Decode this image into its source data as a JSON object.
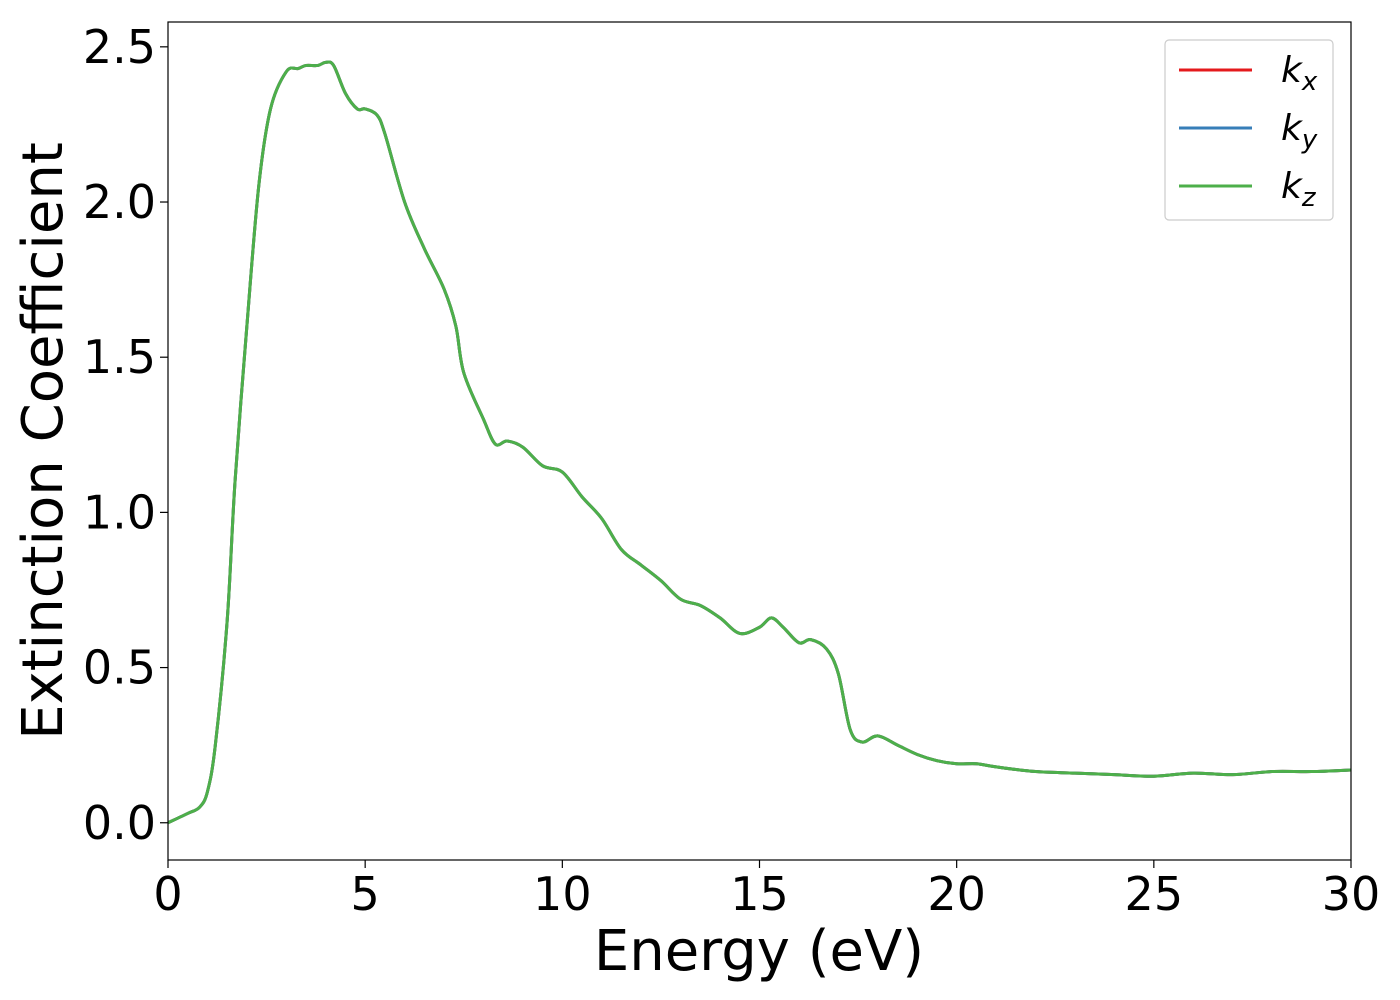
{
  "chart_data": {
    "type": "line",
    "xlabel": "Energy (eV)",
    "ylabel": "Extinction Coefficient",
    "xlim": [
      0,
      30
    ],
    "ylim": [
      -0.12,
      2.58
    ],
    "xticks": [
      0,
      5,
      10,
      15,
      20,
      25,
      30
    ],
    "xtick_labels": [
      "0",
      "5",
      "10",
      "15",
      "20",
      "25",
      "30"
    ],
    "yticks": [
      0.0,
      0.5,
      1.0,
      1.5,
      2.0,
      2.5
    ],
    "ytick_labels": [
      "0.0",
      "0.5",
      "1.0",
      "1.5",
      "2.0",
      "2.5"
    ],
    "grid": false,
    "legend_position": "top-right",
    "x": [
      0,
      0.5,
      0.8,
      1.0,
      1.2,
      1.5,
      1.7,
      2.0,
      2.3,
      2.6,
      3.0,
      3.3,
      3.5,
      3.8,
      4.0,
      4.2,
      4.5,
      4.8,
      5.0,
      5.3,
      5.5,
      6.0,
      6.5,
      7.0,
      7.3,
      7.5,
      8.0,
      8.3,
      8.6,
      9.0,
      9.5,
      10.0,
      10.5,
      11.0,
      11.5,
      12.0,
      12.5,
      13.0,
      13.5,
      14.0,
      14.5,
      15.0,
      15.3,
      15.6,
      16.0,
      16.3,
      16.7,
      17.0,
      17.3,
      17.6,
      18.0,
      18.5,
      19.0,
      19.5,
      20.0,
      20.5,
      21.0,
      22.0,
      23.0,
      24.0,
      25.0,
      26.0,
      27.0,
      28.0,
      29.0,
      30.0
    ],
    "series": [
      {
        "name": "k_x",
        "color": "#e41a1c",
        "values": [
          0.0,
          0.03,
          0.05,
          0.1,
          0.25,
          0.65,
          1.1,
          1.6,
          2.05,
          2.3,
          2.42,
          2.43,
          2.44,
          2.44,
          2.45,
          2.44,
          2.35,
          2.3,
          2.3,
          2.28,
          2.22,
          2.0,
          1.85,
          1.72,
          1.6,
          1.45,
          1.3,
          1.22,
          1.23,
          1.21,
          1.15,
          1.13,
          1.05,
          0.98,
          0.88,
          0.83,
          0.78,
          0.72,
          0.7,
          0.66,
          0.61,
          0.63,
          0.66,
          0.63,
          0.58,
          0.59,
          0.56,
          0.48,
          0.3,
          0.26,
          0.28,
          0.25,
          0.22,
          0.2,
          0.19,
          0.19,
          0.18,
          0.165,
          0.16,
          0.155,
          0.15,
          0.16,
          0.155,
          0.165,
          0.165,
          0.17
        ]
      },
      {
        "name": "k_y",
        "color": "#377eb8",
        "values": [
          0.0,
          0.03,
          0.05,
          0.1,
          0.25,
          0.65,
          1.1,
          1.6,
          2.05,
          2.3,
          2.42,
          2.43,
          2.44,
          2.44,
          2.45,
          2.44,
          2.35,
          2.3,
          2.3,
          2.28,
          2.22,
          2.0,
          1.85,
          1.72,
          1.6,
          1.45,
          1.3,
          1.22,
          1.23,
          1.21,
          1.15,
          1.13,
          1.05,
          0.98,
          0.88,
          0.83,
          0.78,
          0.72,
          0.7,
          0.66,
          0.61,
          0.63,
          0.66,
          0.63,
          0.58,
          0.59,
          0.56,
          0.48,
          0.3,
          0.26,
          0.28,
          0.25,
          0.22,
          0.2,
          0.19,
          0.19,
          0.18,
          0.165,
          0.16,
          0.155,
          0.15,
          0.16,
          0.155,
          0.165,
          0.165,
          0.17
        ]
      },
      {
        "name": "k_z",
        "color": "#4daf4a",
        "values": [
          0.0,
          0.03,
          0.05,
          0.1,
          0.25,
          0.65,
          1.1,
          1.6,
          2.05,
          2.3,
          2.42,
          2.43,
          2.44,
          2.44,
          2.45,
          2.44,
          2.35,
          2.3,
          2.3,
          2.28,
          2.22,
          2.0,
          1.85,
          1.72,
          1.6,
          1.45,
          1.3,
          1.22,
          1.23,
          1.21,
          1.15,
          1.13,
          1.05,
          0.98,
          0.88,
          0.83,
          0.78,
          0.72,
          0.7,
          0.66,
          0.61,
          0.63,
          0.66,
          0.63,
          0.58,
          0.59,
          0.56,
          0.48,
          0.3,
          0.26,
          0.28,
          0.25,
          0.22,
          0.2,
          0.19,
          0.19,
          0.18,
          0.165,
          0.16,
          0.155,
          0.15,
          0.16,
          0.155,
          0.165,
          0.165,
          0.17
        ]
      }
    ],
    "legend": [
      {
        "base": "k",
        "sub": "x",
        "color": "#e41a1c"
      },
      {
        "base": "k",
        "sub": "y",
        "color": "#377eb8"
      },
      {
        "base": "k",
        "sub": "z",
        "color": "#4daf4a"
      }
    ]
  }
}
